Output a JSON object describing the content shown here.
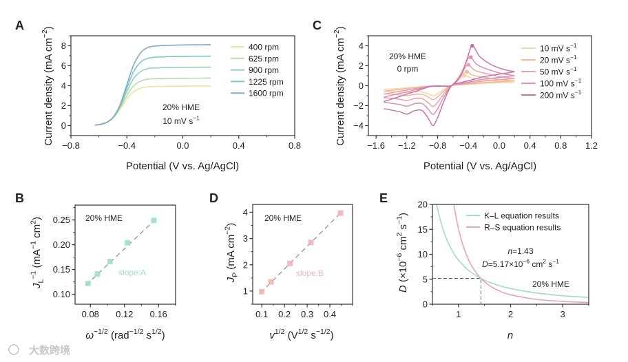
{
  "figure": {
    "panel_labels": {
      "A": "A",
      "B": "B",
      "C": "C",
      "D": "D",
      "E": "E"
    },
    "watermark": "大数跨境"
  },
  "chart_data": [
    {
      "panel": "A",
      "type": "line",
      "xlim": [
        -0.8,
        0.8
      ],
      "ylim": [
        -1,
        9
      ],
      "xticks": [
        -0.8,
        -0.4,
        0,
        0.4,
        0.8
      ],
      "xtick_labels": [
        "−0.8",
        "−0.4",
        "0.0",
        "0.4",
        "0.8"
      ],
      "x_minor_step": 0.2,
      "yticks": [
        0,
        2,
        4,
        6,
        8
      ],
      "ytick_labels": [
        "0",
        "2",
        "4",
        "6",
        "8"
      ],
      "y_minor_step": 1,
      "xlabel_parts": [
        {
          "t": "Potential (V vs. Ag/AgCl)"
        }
      ],
      "ylabel_parts": [
        {
          "t": "Current density (mA cm"
        },
        {
          "t": "−2",
          "s": "sup"
        },
        {
          "t": ")"
        }
      ],
      "annotations": [
        {
          "parts": [
            {
              "t": "20% HME"
            }
          ]
        },
        {
          "parts": [
            {
              "t": "10 mV s"
            },
            {
              "t": "−1",
              "s": "sup"
            }
          ]
        }
      ],
      "legend": "top-right",
      "x": [
        -0.63,
        -0.6,
        -0.55,
        -0.5,
        -0.45,
        -0.4,
        -0.35,
        -0.3,
        -0.25,
        -0.2,
        -0.1,
        0,
        0.1,
        0.2
      ],
      "series": [
        {
          "name_parts": [
            {
              "t": "400 rpm"
            }
          ],
          "color": "#e4e6a2",
          "values": [
            0.05,
            0.095,
            0.275,
            0.73,
            1.61,
            2.68,
            3.41,
            3.76,
            3.88,
            3.92,
            3.94,
            3.95,
            3.95,
            3.96
          ]
        },
        {
          "name_parts": [
            {
              "t": "625 rpm"
            }
          ],
          "color": "#b9dcab",
          "values": [
            0.05,
            0.095,
            0.279,
            0.757,
            1.73,
            3.02,
            4.0,
            4.47,
            4.66,
            4.7,
            4.73,
            4.74,
            4.75,
            4.77
          ]
        },
        {
          "name_parts": [
            {
              "t": "900 rpm"
            }
          ],
          "color": "#92d2b4",
          "values": [
            0.05,
            0.096,
            0.282,
            0.78,
            1.86,
            3.43,
            4.75,
            5.43,
            5.71,
            5.78,
            5.82,
            5.84,
            5.85,
            5.86
          ]
        },
        {
          "name_parts": [
            {
              "t": "1225 rpm"
            }
          ],
          "color": "#7cc6c6",
          "values": [
            0.05,
            0.096,
            0.284,
            0.8,
            1.96,
            3.78,
            5.45,
            6.37,
            6.74,
            6.85,
            6.91,
            6.94,
            6.95,
            6.96
          ]
        },
        {
          "name_parts": [
            {
              "t": "1600 rpm"
            }
          ],
          "color": "#80a8c8",
          "values": [
            0.05,
            0.096,
            0.285,
            0.81,
            2.04,
            4.1,
            6.13,
            7.32,
            7.83,
            7.97,
            8.05,
            8.08,
            8.1,
            8.11
          ]
        }
      ]
    },
    {
      "panel": "C",
      "type": "line",
      "xlim": [
        -1.7,
        1.2
      ],
      "ylim": [
        -5,
        5
      ],
      "xticks": [
        -1.6,
        -1.2,
        -0.8,
        -0.4,
        0,
        0.4,
        0.8,
        1.2
      ],
      "xtick_labels": [
        "−1.6",
        "−1.2",
        "−0.8",
        "−0.4",
        "0.0",
        "0.4",
        "0.8",
        "1.2"
      ],
      "x_minor_step": 0.2,
      "yticks": [
        -4,
        -2,
        0,
        2,
        4
      ],
      "ytick_labels": [
        "−4",
        "−2",
        "0",
        "2",
        "4"
      ],
      "y_minor_step": 1,
      "xlabel_parts": [
        {
          "t": "Potential (V vs. Ag/AgCl)"
        }
      ],
      "ylabel_parts": [
        {
          "t": "Current density (mA cm"
        },
        {
          "t": "−2",
          "s": "sup"
        },
        {
          "t": ")"
        }
      ],
      "annotations": [
        {
          "parts": [
            {
              "t": "20% HME"
            }
          ]
        },
        {
          "parts": [
            {
              "t": "0 rpm"
            }
          ]
        }
      ],
      "legend": "top-right",
      "reference_cycle_200": {
        "cathodic_sweep": [
          [
            0.2,
            1.4
          ],
          [
            0,
            1.15
          ],
          [
            -0.2,
            0.9
          ],
          [
            -0.35,
            0.6
          ],
          [
            -0.5,
            0.3
          ],
          [
            -0.62,
            0
          ],
          [
            -0.72,
            -1.6
          ],
          [
            -0.8,
            -3.2
          ],
          [
            -0.86,
            -4.0
          ],
          [
            -0.92,
            -3.3
          ],
          [
            -1.0,
            -2.5
          ],
          [
            -1.1,
            -2.5
          ],
          [
            -1.2,
            -2.85
          ],
          [
            -1.3,
            -2.6
          ],
          [
            -1.5,
            -2.3
          ]
        ],
        "anodic_sweep": [
          [
            -1.5,
            -1.6
          ],
          [
            -1.3,
            -1.1
          ],
          [
            -1.1,
            -0.6
          ],
          [
            -0.9,
            -0.1
          ],
          [
            -0.75,
            -0.05
          ],
          [
            -0.62,
            0
          ],
          [
            -0.5,
            1.0
          ],
          [
            -0.42,
            2.6
          ],
          [
            -0.35,
            4.0
          ],
          [
            -0.25,
            2.9
          ],
          [
            -0.1,
            2.1
          ],
          [
            0.05,
            1.65
          ],
          [
            0.2,
            1.4
          ]
        ]
      },
      "series": [
        {
          "name_parts": [
            {
              "t": "10 mV s"
            },
            {
              "t": "−1",
              "s": "sup"
            }
          ],
          "color": "#f5d5a5",
          "scale": 0.25,
          "anodic_peak": [
            -0.45,
            1.0
          ]
        },
        {
          "name_parts": [
            {
              "t": "20 mV s"
            },
            {
              "t": "−1",
              "s": "sup"
            }
          ],
          "color": "#f2b898",
          "scale": 0.35,
          "anodic_peak": [
            -0.42,
            1.4
          ]
        },
        {
          "name_parts": [
            {
              "t": "50 mV s"
            },
            {
              "t": "−1",
              "s": "sup"
            }
          ],
          "color": "#e9a2a8",
          "scale": 0.52,
          "anodic_peak": [
            -0.4,
            2.1
          ]
        },
        {
          "name_parts": [
            {
              "t": "100 mV s"
            },
            {
              "t": "−1",
              "s": "sup"
            }
          ],
          "color": "#da90b6",
          "scale": 0.72,
          "anodic_peak": [
            -0.37,
            2.85
          ]
        },
        {
          "name_parts": [
            {
              "t": "200 mV s"
            },
            {
              "t": "−1",
              "s": "sup"
            }
          ],
          "color": "#c872ae",
          "scale": 1.0,
          "anodic_peak": [
            -0.35,
            4.0
          ]
        }
      ]
    },
    {
      "panel": "B",
      "type": "scatter",
      "xlim": [
        0.062,
        0.18
      ],
      "ylim": [
        0.08,
        0.28
      ],
      "xticks": [
        0.08,
        0.12,
        0.16
      ],
      "xtick_labels": [
        "0.08",
        "0.12",
        "0.16"
      ],
      "x_minor_step": 0.02,
      "yticks": [
        0.1,
        0.15,
        0.2,
        0.25
      ],
      "ytick_labels": [
        "0.10",
        "0.15",
        "0.20",
        "0.25"
      ],
      "y_minor_step": 0.025,
      "xlabel_parts": [
        {
          "t": "ω",
          "s": "it"
        },
        {
          "t": "−1/2",
          "s": "sup"
        },
        {
          "t": " (rad"
        },
        {
          "t": "−1/2",
          "s": "sup"
        },
        {
          "t": " s"
        },
        {
          "t": "1/2",
          "s": "sup"
        },
        {
          "t": ")"
        }
      ],
      "ylabel_parts": [
        {
          "t": "J",
          "s": "it"
        },
        {
          "t": "L",
          "s": "sub"
        },
        {
          "t": "−1",
          "s": "sup"
        },
        {
          "t": " (mA"
        },
        {
          "t": "−1",
          "s": "sup"
        },
        {
          "t": " cm"
        },
        {
          "t": "2",
          "s": "sup"
        },
        {
          "t": ")"
        }
      ],
      "annotations": [
        {
          "parts": [
            {
              "t": "20% HME"
            }
          ]
        },
        {
          "parts": [
            {
              "t": "slope:A"
            }
          ],
          "color": "#9fdcc8"
        }
      ],
      "color": "#9fdcc8",
      "x": [
        0.0772,
        0.0883,
        0.103,
        0.1236,
        0.1545
      ],
      "y": [
        0.122,
        0.141,
        0.166,
        0.204,
        0.249
      ],
      "fit": {
        "slope": 1.628,
        "intercept": -0.0034,
        "x_range": [
          0.075,
          0.157
        ]
      }
    },
    {
      "panel": "D",
      "type": "scatter",
      "xlim": [
        0.06,
        0.5
      ],
      "ylim": [
        0.5,
        4.3
      ],
      "xticks": [
        0.1,
        0.2,
        0.3,
        0.4
      ],
      "xtick_labels": [
        "0.1",
        "0.2",
        "0.3",
        "0.4"
      ],
      "x_minor_step": 0.05,
      "yticks": [
        1,
        2,
        3,
        4
      ],
      "ytick_labels": [
        "1",
        "2",
        "3",
        "4"
      ],
      "y_minor_step": 0.5,
      "xlabel_parts": [
        {
          "t": "v",
          "s": "it"
        },
        {
          "t": "1/2",
          "s": "sup"
        },
        {
          "t": " (V"
        },
        {
          "t": "1/2",
          "s": "sup"
        },
        {
          "t": " s"
        },
        {
          "t": "−1/2",
          "s": "sup"
        },
        {
          "t": ")"
        }
      ],
      "ylabel_parts": [
        {
          "t": "J",
          "s": "it"
        },
        {
          "t": "P",
          "s": "sub"
        },
        {
          "t": " (mA cm"
        },
        {
          "t": "−2",
          "s": "sup"
        },
        {
          "t": ")"
        }
      ],
      "annotations": [
        {
          "parts": [
            {
              "t": "20% HME"
            }
          ]
        },
        {
          "parts": [
            {
              "t": "slope:B"
            }
          ],
          "color": "#f2b4b4"
        }
      ],
      "color": "#f2b0b0",
      "x": [
        0.1,
        0.141,
        0.224,
        0.316,
        0.447
      ],
      "y": [
        0.98,
        1.35,
        2.05,
        2.85,
        3.97
      ],
      "fit": {
        "slope": 8.62,
        "intercept": 0.118,
        "x_range": [
          0.095,
          0.45
        ]
      }
    },
    {
      "panel": "E",
      "type": "line",
      "xlim": [
        0.5,
        3.5
      ],
      "ylim": [
        0,
        20
      ],
      "xticks": [
        1,
        2,
        3
      ],
      "xtick_labels": [
        "1",
        "2",
        "3"
      ],
      "x_minor_step": 0.5,
      "yticks": [
        0,
        5,
        10,
        15,
        20
      ],
      "ytick_labels": [
        "0",
        "5",
        "10",
        "15",
        "20"
      ],
      "y_minor_step": 2.5,
      "xlabel_parts": [
        {
          "t": "n",
          "s": "it"
        }
      ],
      "ylabel_parts": [
        {
          "t": "D",
          "s": "it"
        },
        {
          "t": " (×10"
        },
        {
          "t": "−6",
          "s": "sup"
        },
        {
          "t": " cm"
        },
        {
          "t": "2",
          "s": "sup"
        },
        {
          "t": " s"
        },
        {
          "t": "−1",
          "s": "sup"
        },
        {
          "t": ")"
        }
      ],
      "annotations": [
        {
          "parts": [
            {
              "t": "n",
              "s": "it"
            },
            {
              "t": "=1.43"
            }
          ]
        },
        {
          "parts": [
            {
              "t": "D",
              "s": "it"
            },
            {
              "t": "=5.17×10"
            },
            {
              "t": "−6",
              "s": "sup"
            },
            {
              "t": " cm"
            },
            {
              "t": "2",
              "s": "sup"
            },
            {
              "t": " s"
            },
            {
              "t": "−1",
              "s": "sup"
            }
          ]
        },
        {
          "parts": [
            {
              "t": "20% HME"
            }
          ]
        }
      ],
      "legend": "top-right",
      "intersection": {
        "n": 1.43,
        "D": 5.17
      },
      "series": [
        {
          "name_parts": [
            {
              "t": "K–L equation results"
            }
          ],
          "color": "#9fdcc8",
          "points": [
            [
              0.5,
              25.0
            ],
            [
              0.58,
              20.0
            ],
            [
              0.6,
              19.02
            ],
            [
              0.7,
              15.09
            ],
            [
              0.8,
              12.36
            ],
            [
              0.9,
              10.35
            ],
            [
              1.0,
              8.84
            ],
            [
              1.2,
              6.73
            ],
            [
              1.43,
              5.17
            ],
            [
              1.6,
              4.37
            ],
            [
              1.8,
              3.66
            ],
            [
              2.0,
              3.13
            ],
            [
              2.5,
              2.24
            ],
            [
              3.0,
              1.7
            ],
            [
              3.5,
              1.35
            ]
          ]
        },
        {
          "name_parts": [
            {
              "t": "R–S equation results"
            }
          ],
          "color": "#e8a4ac",
          "points": [
            [
              0.88,
              22.2
            ],
            [
              0.91,
              20.06
            ],
            [
              1.0,
              15.12
            ],
            [
              1.1,
              11.36
            ],
            [
              1.2,
              8.75
            ],
            [
              1.3,
              6.88
            ],
            [
              1.43,
              5.17
            ],
            [
              1.6,
              3.69
            ],
            [
              1.8,
              2.59
            ],
            [
              2.0,
              1.89
            ],
            [
              2.5,
              0.97
            ],
            [
              3.0,
              0.56
            ],
            [
              3.5,
              0.35
            ]
          ]
        }
      ]
    }
  ]
}
